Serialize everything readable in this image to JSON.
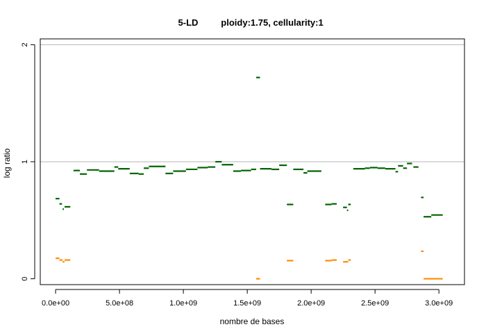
{
  "chart_data": {
    "type": "line",
    "title_parts": [
      "5-LD",
      "ploidy:1.75, cellularity:1"
    ],
    "xlabel": "nombre de bases",
    "ylabel": "log ratio",
    "xlim": [
      -120000000.0,
      3200000000.0
    ],
    "ylim": [
      -0.05,
      2.05
    ],
    "x_ticks": [
      0,
      500000000,
      1000000000,
      1500000000,
      2000000000,
      2500000000,
      3000000000
    ],
    "x_tick_labels": [
      "0.0e+00",
      "5.0e+08",
      "1.0e+09",
      "1.5e+09",
      "2.0e+09",
      "2.5e+09",
      "3.0e+09"
    ],
    "y_ticks": [
      0,
      1,
      2
    ],
    "y_tick_labels": [
      "0",
      "1",
      "2"
    ],
    "hlines": [
      1,
      2
    ],
    "colors": {
      "series1": "#006400",
      "series2": "#ff8c00",
      "grid": "#b4b4b4"
    },
    "series": [
      {
        "color": "#006400",
        "segments": [
          [
            0,
            30000000,
            0.685
          ],
          [
            30000000,
            50000000,
            0.64
          ],
          [
            55000000,
            65000000,
            0.595
          ],
          [
            70000000,
            115000000,
            0.615
          ],
          [
            140000000,
            190000000,
            0.925
          ],
          [
            190000000,
            245000000,
            0.895
          ],
          [
            245000000,
            340000000,
            0.93
          ],
          [
            340000000,
            460000000,
            0.92
          ],
          [
            460000000,
            490000000,
            0.955
          ],
          [
            490000000,
            580000000,
            0.94
          ],
          [
            580000000,
            650000000,
            0.9
          ],
          [
            650000000,
            690000000,
            0.895
          ],
          [
            690000000,
            730000000,
            0.945
          ],
          [
            730000000,
            860000000,
            0.96
          ],
          [
            860000000,
            920000000,
            0.9
          ],
          [
            920000000,
            1020000000,
            0.92
          ],
          [
            1020000000,
            1110000000,
            0.935
          ],
          [
            1110000000,
            1190000000,
            0.95
          ],
          [
            1190000000,
            1250000000,
            0.955
          ],
          [
            1250000000,
            1300000000,
            1.0
          ],
          [
            1300000000,
            1390000000,
            0.975
          ],
          [
            1390000000,
            1450000000,
            0.92
          ],
          [
            1450000000,
            1530000000,
            0.925
          ],
          [
            1530000000,
            1570000000,
            0.935
          ],
          [
            1570000000,
            1600000000,
            1.72
          ],
          [
            1600000000,
            1690000000,
            0.94
          ],
          [
            1690000000,
            1750000000,
            0.935
          ],
          [
            1750000000,
            1810000000,
            0.97
          ],
          [
            1810000000,
            1860000000,
            0.635
          ],
          [
            1860000000,
            1940000000,
            0.935
          ],
          [
            1940000000,
            1970000000,
            0.905
          ],
          [
            1970000000,
            2080000000,
            0.92
          ],
          [
            2110000000,
            2160000000,
            0.635
          ],
          [
            2160000000,
            2200000000,
            0.64
          ],
          [
            2250000000,
            2280000000,
            0.61
          ],
          [
            2280000000,
            2290000000,
            0.585
          ],
          [
            2290000000,
            2310000000,
            0.635
          ],
          [
            2330000000,
            2420000000,
            0.94
          ],
          [
            2420000000,
            2460000000,
            0.945
          ],
          [
            2460000000,
            2520000000,
            0.95
          ],
          [
            2520000000,
            2580000000,
            0.945
          ],
          [
            2580000000,
            2660000000,
            0.94
          ],
          [
            2660000000,
            2680000000,
            0.915
          ],
          [
            2680000000,
            2720000000,
            0.965
          ],
          [
            2720000000,
            2750000000,
            0.945
          ],
          [
            2750000000,
            2790000000,
            0.985
          ],
          [
            2800000000,
            2840000000,
            0.955
          ],
          [
            2860000000,
            2880000000,
            0.695
          ],
          [
            2880000000,
            2940000000,
            0.53
          ],
          [
            2940000000,
            3030000000,
            0.545
          ]
        ]
      },
      {
        "color": "#ff8c00",
        "segments": [
          [
            0,
            30000000,
            0.175
          ],
          [
            30000000,
            55000000,
            0.16
          ],
          [
            55000000,
            70000000,
            0.145
          ],
          [
            70000000,
            115000000,
            0.16
          ],
          [
            1570000000,
            1600000000,
            0.0
          ],
          [
            1810000000,
            1860000000,
            0.155
          ],
          [
            2110000000,
            2160000000,
            0.155
          ],
          [
            2160000000,
            2200000000,
            0.16
          ],
          [
            2250000000,
            2290000000,
            0.145
          ],
          [
            2290000000,
            2310000000,
            0.16
          ],
          [
            2860000000,
            2880000000,
            0.235
          ],
          [
            2880000000,
            3030000000,
            0.0
          ]
        ]
      }
    ]
  }
}
